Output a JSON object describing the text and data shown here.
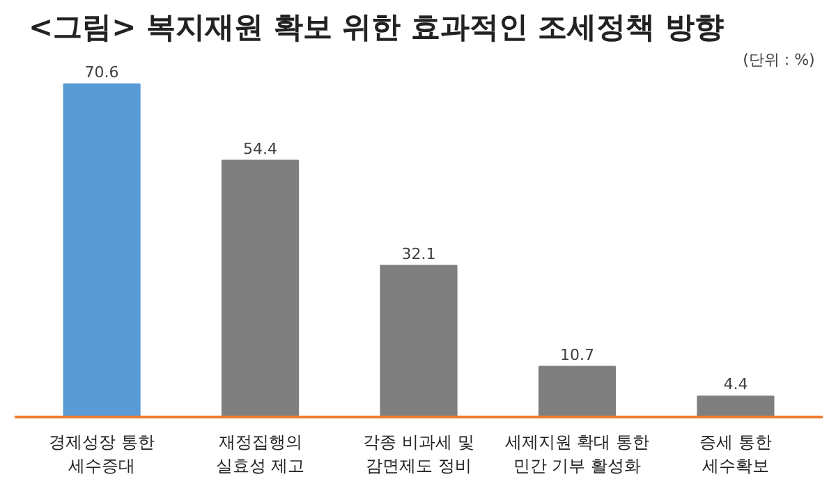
{
  "chart_data": {
    "type": "bar",
    "title": "<그림> 복지재원 확보 위한 효과적인 조세정책 방향",
    "annotations": [
      "(단위 : %)"
    ],
    "categories": [
      "경제성장 통한\n세수증대",
      "재정집행의\n실효성 제고",
      "각종 비과세 및\n감면제도 정비",
      "세제지원 확대 통한\n민간 기부 활성화",
      "증세 통한\n세수확보"
    ],
    "values": [
      70.6,
      54.4,
      32.1,
      10.7,
      4.4
    ],
    "colors": [
      "#5b9bd5",
      "#7f7f7f",
      "#7f7f7f",
      "#7f7f7f",
      "#7f7f7f"
    ],
    "data_labels": true,
    "grid": false
  }
}
